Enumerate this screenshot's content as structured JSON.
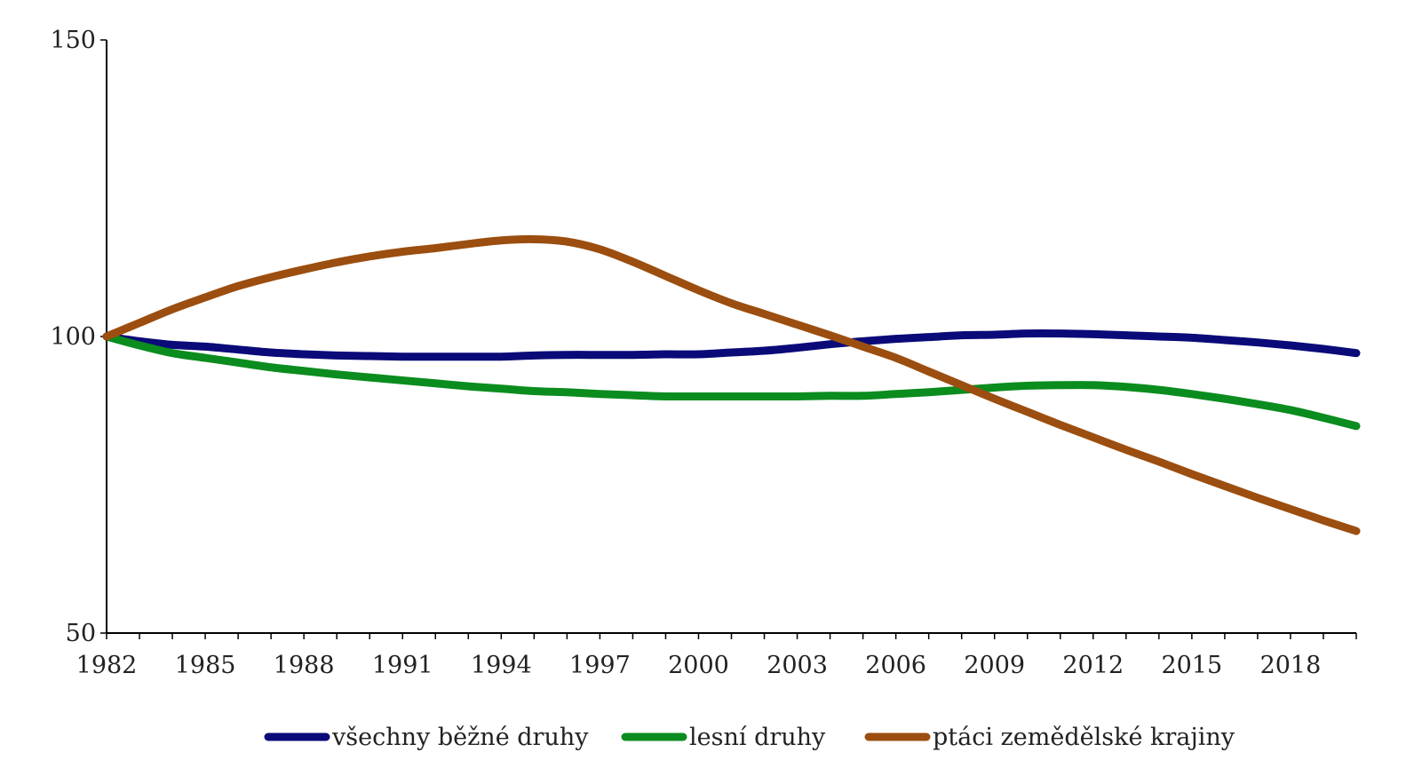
{
  "chart_data": {
    "type": "line",
    "title": "",
    "xlabel": "",
    "ylabel": "",
    "ylim": [
      50,
      150
    ],
    "yticks": [
      50,
      100,
      150
    ],
    "xlim": [
      1982,
      2020
    ],
    "xticks": [
      1982,
      1985,
      1988,
      1991,
      1994,
      1997,
      2000,
      2003,
      2006,
      2009,
      2012,
      2015,
      2018
    ],
    "grid": false,
    "legend_position": "bottom",
    "x": [
      1982,
      1983,
      1984,
      1985,
      1986,
      1987,
      1988,
      1989,
      1990,
      1991,
      1992,
      1993,
      1994,
      1995,
      1996,
      1997,
      1998,
      1999,
      2000,
      2001,
      2002,
      2003,
      2004,
      2005,
      2006,
      2007,
      2008,
      2009,
      2010,
      2011,
      2012,
      2013,
      2014,
      2015,
      2016,
      2017,
      2018,
      2019,
      2020
    ],
    "series": [
      {
        "name": "všechny běžné druhy",
        "color": "#0a0a78",
        "values": [
          100,
          99.2,
          98.6,
          98.3,
          97.8,
          97.3,
          97.0,
          96.8,
          96.7,
          96.6,
          96.6,
          96.6,
          96.6,
          96.8,
          96.9,
          96.9,
          96.9,
          97.0,
          97.0,
          97.3,
          97.6,
          98.1,
          98.7,
          99.2,
          99.6,
          99.9,
          100.2,
          100.3,
          100.5,
          100.5,
          100.4,
          100.2,
          100.0,
          99.8,
          99.4,
          99.0,
          98.5,
          97.9,
          97.2
        ]
      },
      {
        "name": "lesní druhy",
        "color": "#0b8c1e",
        "values": [
          100,
          98.5,
          97.2,
          96.4,
          95.6,
          94.8,
          94.2,
          93.6,
          93.1,
          92.6,
          92.1,
          91.6,
          91.2,
          90.8,
          90.6,
          90.3,
          90.1,
          89.9,
          89.9,
          89.9,
          89.9,
          89.9,
          90.0,
          90.0,
          90.3,
          90.6,
          91.0,
          91.4,
          91.7,
          91.8,
          91.8,
          91.5,
          91.0,
          90.3,
          89.5,
          88.6,
          87.6,
          86.3,
          84.9
        ]
      },
      {
        "name": "ptáci zemědělské krajiny",
        "color": "#9b4e0f",
        "values": [
          100,
          102.3,
          104.6,
          106.6,
          108.5,
          110.0,
          111.3,
          112.5,
          113.5,
          114.3,
          114.9,
          115.6,
          116.2,
          116.4,
          116.0,
          114.7,
          112.6,
          110.2,
          107.8,
          105.6,
          103.8,
          102.0,
          100.2,
          98.3,
          96.4,
          94.1,
          91.8,
          89.5,
          87.3,
          85.1,
          83.0,
          80.9,
          78.9,
          76.8,
          74.8,
          72.8,
          70.9,
          69.0,
          67.2
        ]
      }
    ]
  }
}
